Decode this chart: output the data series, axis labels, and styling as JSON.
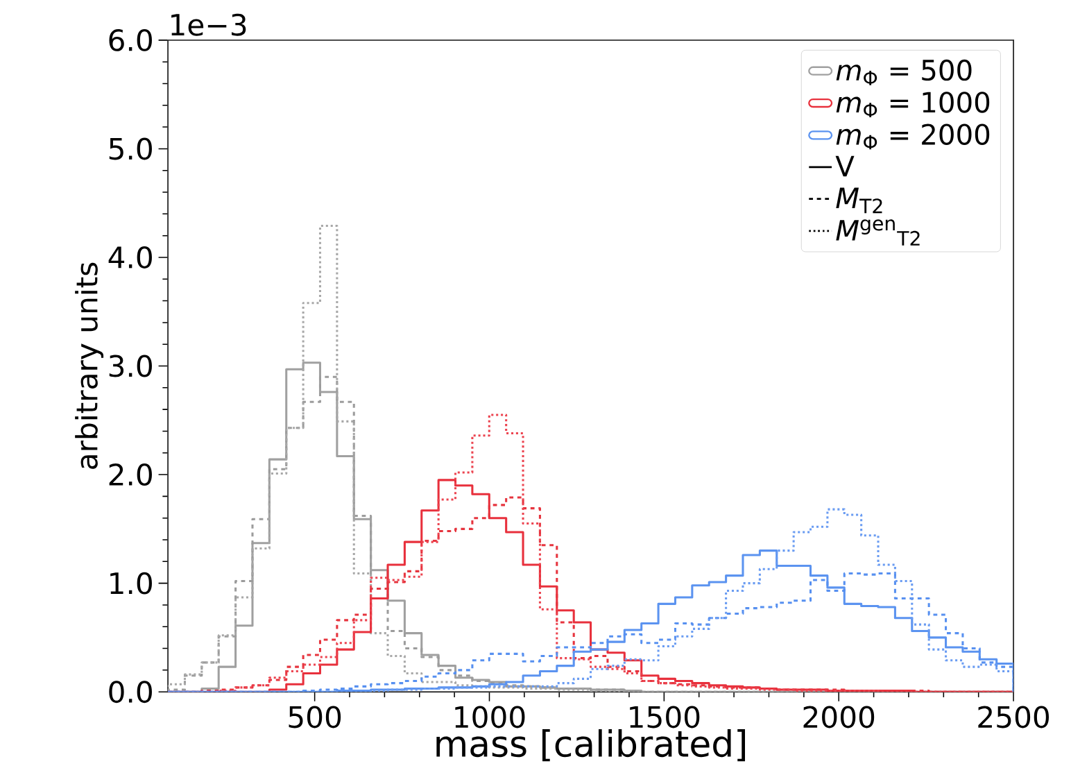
{
  "chart_data": {
    "type": "histogram",
    "xlabel": "mass [calibrated]",
    "ylabel": "arbitrary units",
    "bins": [
      80,
      128.4,
      176.8,
      225.2,
      273.6,
      322,
      370.4,
      418.8,
      467.2,
      515.6,
      564,
      612.4,
      660.8,
      709.2,
      757.6,
      806,
      854.4,
      902.8,
      951.2,
      999.6,
      1048,
      1096.4,
      1144.8,
      1193.2,
      1241.6,
      1290,
      1338.4,
      1386.8,
      1435.2,
      1483.6,
      1532,
      1580.4,
      1628.8,
      1677.2,
      1725.6,
      1774,
      1822.4,
      1870.8,
      1919.2,
      1967.6,
      2016,
      2064.4,
      2112.8,
      2161.2,
      2209.6,
      2258,
      2306.4,
      2354.8,
      2403.2,
      2451.6,
      2500
    ],
    "xlim": [
      80,
      2500
    ],
    "xticks": [
      500,
      1000,
      1500,
      2000,
      2500
    ],
    "ylim": [
      0,
      6
    ],
    "yticks": [
      {
        "value": 0,
        "label": "0.0"
      },
      {
        "value": 1,
        "label": "1.0"
      },
      {
        "value": 2,
        "label": "2.0"
      },
      {
        "value": 3,
        "label": "3.0"
      },
      {
        "value": 4,
        "label": "4.0"
      },
      {
        "value": 5,
        "label": "5.0"
      },
      {
        "value": 6,
        "label": "6.0"
      }
    ],
    "legend": "top right",
    "annotations": [
      "1e−3",
      "V",
      "*M*$_{T2}$",
      "*M*$^{gen}$$_{T2}$"
    ],
    "series": [
      {
        "name": "*m*$_{Φ}$ = 500",
        "color": "#a0a0a0",
        "line_style": "solid",
        "values": [
          0,
          0,
          0.03,
          0.23,
          0.61,
          1.37,
          2.14,
          2.97,
          3.03,
          2.76,
          2.17,
          1.59,
          1.12,
          0.84,
          0.54,
          0.34,
          0.24,
          0.13,
          0.11,
          0.09,
          0.05,
          0.05,
          0.04,
          0.03,
          0.03,
          0.02,
          0.02,
          0.01,
          0,
          0,
          0,
          0,
          0,
          0,
          0,
          0,
          0,
          0,
          0,
          0,
          0,
          0,
          0,
          0,
          0,
          0,
          0,
          0,
          0,
          0
        ]
      },
      {
        "color": "#9c9c9c",
        "line_style": "dashed",
        "values": [
          0.02,
          0.15,
          0.27,
          0.51,
          1.02,
          1.59,
          2.05,
          2.43,
          2.67,
          2.9,
          2.67,
          1.62,
          0.95,
          0.56,
          0.4,
          0.32,
          0.2,
          0.15,
          0.1,
          0.08,
          0.06,
          0.05,
          0.04,
          0.03,
          0.03,
          0.02,
          0.02,
          0.01,
          0,
          0,
          0,
          0,
          0,
          0,
          0,
          0,
          0,
          0,
          0,
          0,
          0,
          0,
          0,
          0,
          0,
          0,
          0,
          0,
          0,
          0
        ]
      },
      {
        "color": "#a8a8a8",
        "line_style": "dotted",
        "values": [
          0.07,
          0.16,
          0.27,
          0.52,
          0.87,
          1.32,
          2.01,
          2.43,
          3.58,
          4.29,
          2.49,
          1.09,
          0.54,
          0.33,
          0.17,
          0.09,
          0.09,
          0.06,
          0.05,
          0.04,
          0.04,
          0.03,
          0.03,
          0.02,
          0.02,
          0.01,
          0,
          0,
          0,
          0,
          0,
          0,
          0,
          0,
          0,
          0,
          0,
          0,
          0,
          0,
          0,
          0,
          0,
          0,
          0,
          0,
          0,
          0,
          0,
          0
        ]
      },
      {
        "name": "*m*$_{Φ}$ = 1000",
        "color": "#e8303c",
        "line_style": "solid",
        "values": [
          0,
          0,
          0,
          0,
          0,
          0,
          0.02,
          0.07,
          0.17,
          0.25,
          0.39,
          0.55,
          0.86,
          1.17,
          1.38,
          1.67,
          1.95,
          1.9,
          1.82,
          1.6,
          1.47,
          1.17,
          0.97,
          0.75,
          0.64,
          0.39,
          0.36,
          0.29,
          0.15,
          0.12,
          0.1,
          0.08,
          0.06,
          0.05,
          0.04,
          0.03,
          0.02,
          0.02,
          0.02,
          0.01,
          0.01,
          0.01,
          0.01,
          0.01,
          0,
          0,
          0,
          0,
          0,
          0
        ]
      },
      {
        "color": "#e6343e",
        "line_style": "dashed",
        "values": [
          0,
          0,
          0.01,
          0.02,
          0.04,
          0.06,
          0.11,
          0.23,
          0.34,
          0.48,
          0.66,
          0.71,
          0.95,
          1.01,
          1.11,
          1.39,
          1.48,
          1.5,
          1.6,
          1.72,
          1.79,
          1.69,
          1.35,
          0.64,
          0.31,
          0.33,
          0.23,
          0.19,
          0.1,
          0.08,
          0.07,
          0.06,
          0.05,
          0.04,
          0.04,
          0.03,
          0.02,
          0.02,
          0.02,
          0.02,
          0.01,
          0.01,
          0.01,
          0.01,
          0.01,
          0,
          0,
          0,
          0,
          0
        ]
      },
      {
        "color": "#ec4450",
        "line_style": "dotted",
        "values": [
          0,
          0,
          0,
          0.01,
          0.04,
          0.06,
          0.13,
          0.19,
          0.25,
          0.32,
          0.45,
          0.66,
          1.05,
          1.03,
          1.06,
          1.38,
          1.77,
          2.02,
          2.36,
          2.55,
          2.38,
          1.55,
          0.76,
          0.31,
          0.3,
          0.23,
          0.21,
          0.17,
          0.1,
          0.08,
          0.06,
          0.05,
          0.04,
          0.03,
          0.03,
          0.02,
          0.02,
          0.01,
          0.01,
          0.01,
          0.01,
          0.01,
          0,
          0,
          0,
          0,
          0,
          0,
          0,
          0
        ]
      },
      {
        "name": "*m*$_{Φ}$ = 2000",
        "color": "#5b93f0",
        "line_style": "solid",
        "values": [
          0,
          0,
          0,
          0,
          0,
          0,
          0,
          0,
          0,
          0,
          0.01,
          0.01,
          0.02,
          0.02,
          0.03,
          0.03,
          0.04,
          0.04,
          0.05,
          0.07,
          0.09,
          0.15,
          0.19,
          0.24,
          0.37,
          0.39,
          0.46,
          0.57,
          0.63,
          0.81,
          0.87,
          0.98,
          1.01,
          1.07,
          1.26,
          1.3,
          1.16,
          1.16,
          1.07,
          0.96,
          0.81,
          0.79,
          0.78,
          0.68,
          0.56,
          0.5,
          0.41,
          0.37,
          0.3,
          0.26
        ]
      },
      {
        "color": "#5790f0",
        "line_style": "dashed",
        "values": [
          0,
          0,
          0,
          0,
          0,
          0,
          0,
          0,
          0.01,
          0.02,
          0.03,
          0.05,
          0.07,
          0.08,
          0.1,
          0.14,
          0.17,
          0.2,
          0.29,
          0.35,
          0.35,
          0.28,
          0.33,
          0.41,
          0.41,
          0.45,
          0.51,
          0.53,
          0.45,
          0.48,
          0.63,
          0.62,
          0.68,
          0.72,
          0.77,
          0.78,
          0.82,
          0.84,
          1.03,
          0.93,
          1.09,
          1.08,
          1.09,
          0.86,
          0.86,
          0.71,
          0.54,
          0.4,
          0.27,
          0.23
        ]
      },
      {
        "color": "#6a9cf2",
        "line_style": "dotted",
        "values": [
          0,
          0,
          0,
          0,
          0,
          0,
          0,
          0,
          0,
          0,
          0,
          0,
          0.01,
          0.02,
          0.02,
          0.03,
          0.03,
          0.04,
          0.04,
          0.05,
          0.05,
          0.05,
          0.05,
          0.08,
          0.12,
          0.21,
          0.24,
          0.3,
          0.29,
          0.42,
          0.51,
          0.58,
          0.68,
          0.93,
          1.0,
          1.13,
          1.3,
          1.47,
          1.52,
          1.68,
          1.63,
          1.44,
          1.17,
          1.02,
          0.62,
          0.39,
          0.29,
          0.23,
          0.25,
          0.19
        ]
      }
    ]
  }
}
